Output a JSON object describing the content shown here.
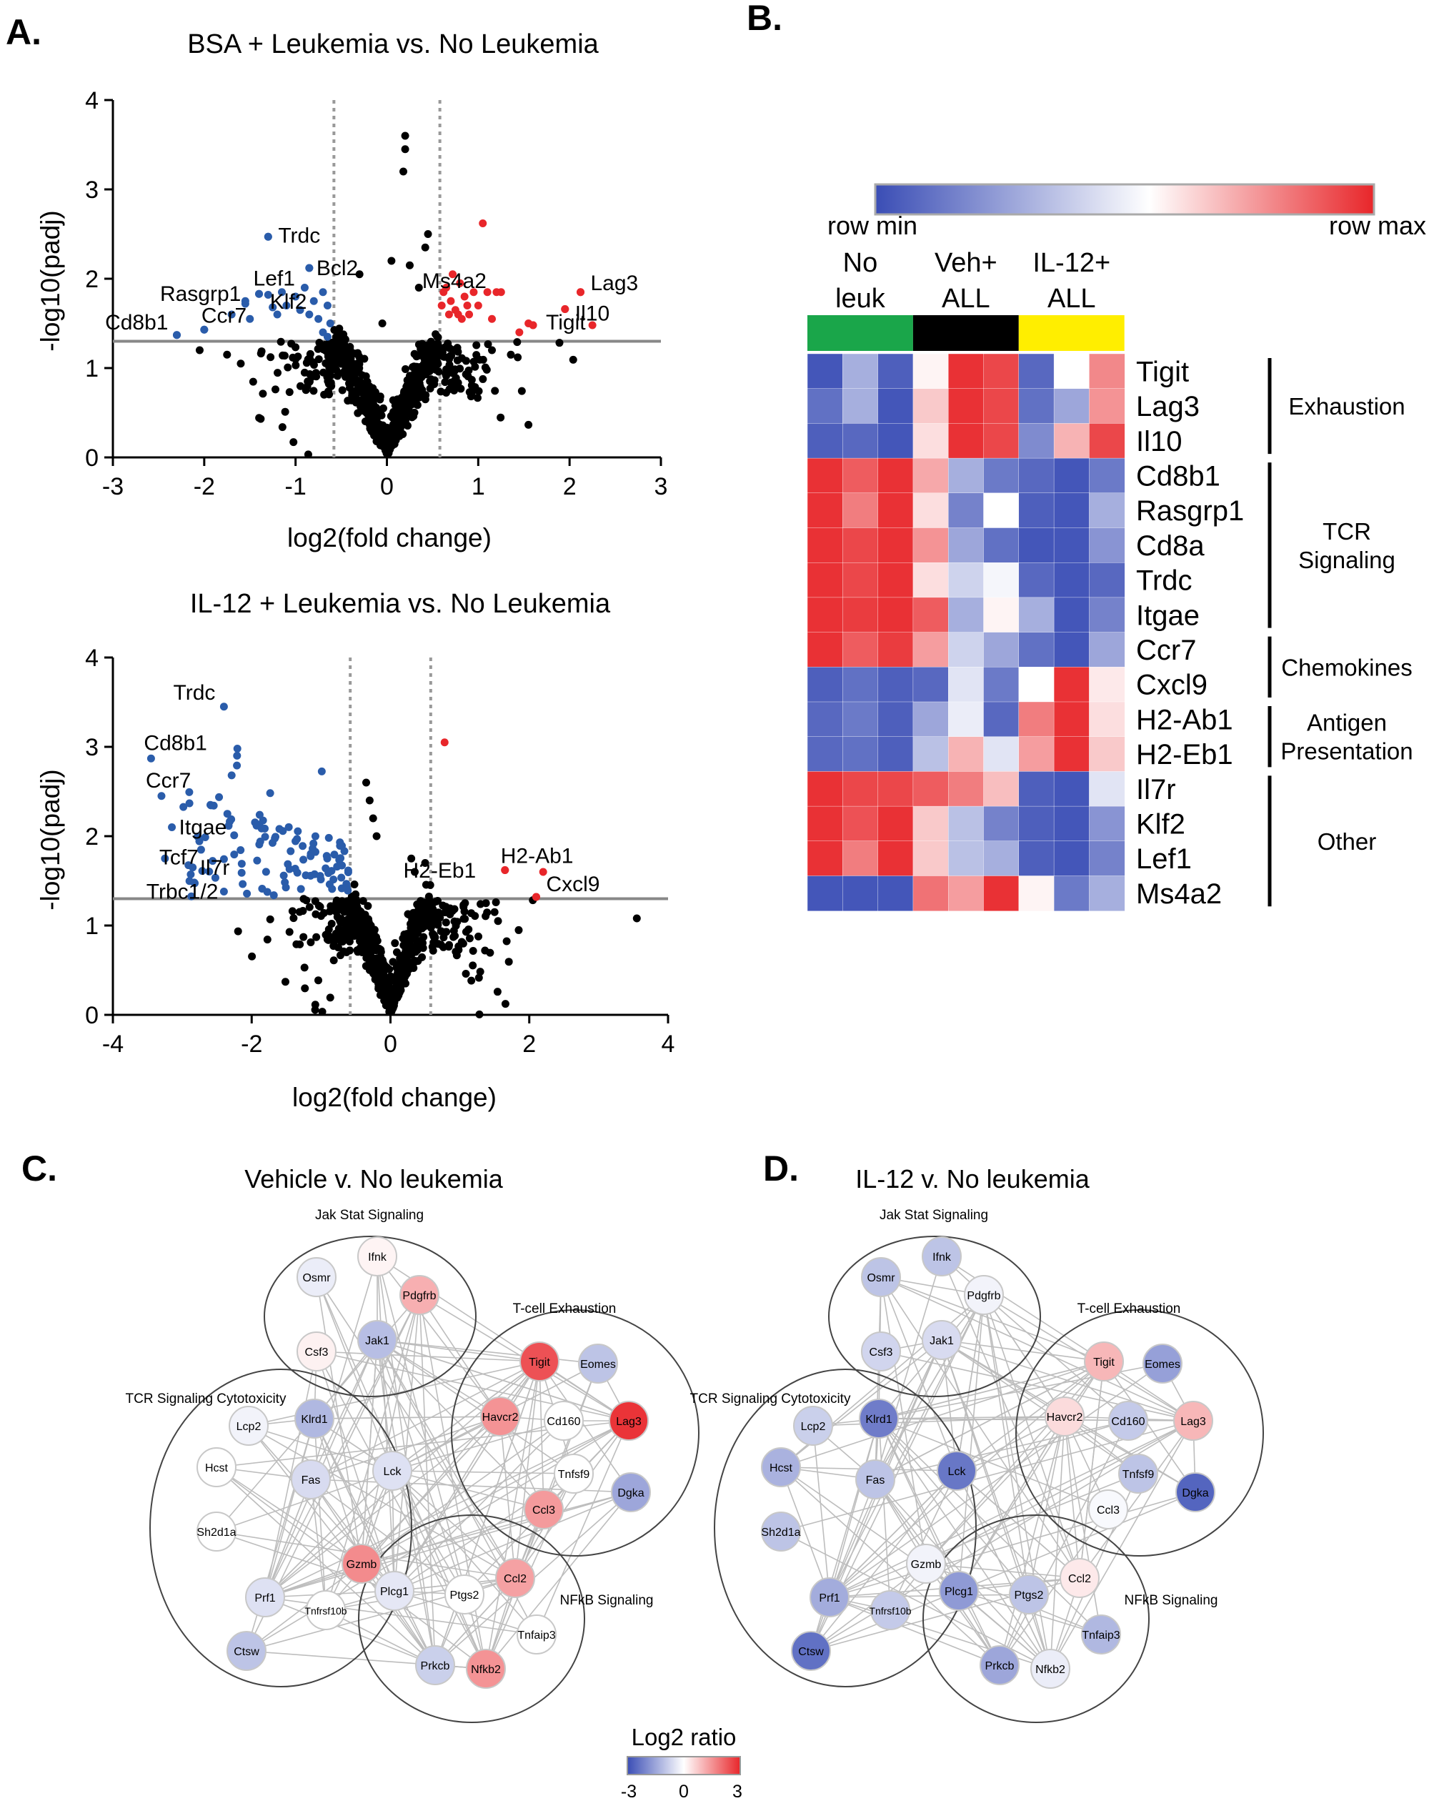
{
  "panels": {
    "a": "A.",
    "b": "B.",
    "c": "C.",
    "d": "D."
  },
  "chart_data": [
    {
      "type": "scatter",
      "panel": "A",
      "title": "BSA + Leukemia vs. No Leukemia",
      "xlabel": "log2(fold change)",
      "ylabel": "-log10(padj)",
      "xlim": [
        -3,
        3
      ],
      "ylim": [
        0,
        4
      ],
      "xticks": [
        -3,
        -2,
        -1,
        0,
        1,
        2,
        3
      ],
      "yticks": [
        0,
        1,
        2,
        3,
        4
      ],
      "threshold_y": 1.3,
      "threshold_x": [
        -0.58,
        0.58
      ],
      "labeled_points": [
        {
          "label": "Trdc",
          "x": -1.3,
          "y": 2.47,
          "color": "#2a5caa"
        },
        {
          "label": "Bcl2",
          "x": -0.85,
          "y": 2.12,
          "color": "#2a5caa"
        },
        {
          "label": "Lef1",
          "x": -1.4,
          "y": 1.83,
          "color": "#2a5caa"
        },
        {
          "label": "Rasgrp1",
          "x": -1.55,
          "y": 1.72,
          "color": "#2a5caa"
        },
        {
          "label": "Klf2",
          "x": -1.25,
          "y": 1.68,
          "color": "#2a5caa"
        },
        {
          "label": "Ccr7",
          "x": -2.0,
          "y": 1.43,
          "color": "#2a5caa"
        },
        {
          "label": "Cd8b1",
          "x": -2.3,
          "y": 1.37,
          "color": "#2a5caa"
        },
        {
          "label": "Ms4a2",
          "x": 1.2,
          "y": 1.85,
          "color": "#e8262a"
        },
        {
          "label": "Lag3",
          "x": 2.12,
          "y": 1.85,
          "color": "#e8262a"
        },
        {
          "label": "Il10",
          "x": 1.95,
          "y": 1.66,
          "color": "#e8262a"
        },
        {
          "label": "Tigit",
          "x": 1.6,
          "y": 1.48,
          "color": "#e8262a"
        }
      ],
      "sig_down_points": [
        [
          -1.7,
          1.6
        ],
        [
          -1.55,
          1.75
        ],
        [
          -1.3,
          1.82
        ],
        [
          -1.15,
          1.85
        ],
        [
          -1.1,
          1.7
        ],
        [
          -1.0,
          1.8
        ],
        [
          -0.95,
          1.65
        ],
        [
          -0.9,
          1.9
        ],
        [
          -0.85,
          1.6
        ],
        [
          -0.8,
          1.75
        ],
        [
          -0.75,
          1.55
        ],
        [
          -0.7,
          1.85
        ],
        [
          -0.7,
          1.4
        ],
        [
          -0.65,
          1.7
        ],
        [
          -0.65,
          1.35
        ],
        [
          -1.5,
          1.55
        ],
        [
          -1.2,
          1.6
        ],
        [
          -2.3,
          1.37
        ],
        [
          -2.0,
          1.43
        ],
        [
          -1.4,
          1.83
        ],
        [
          -1.25,
          1.68
        ],
        [
          -0.85,
          2.12
        ],
        [
          -1.3,
          2.47
        ],
        [
          -0.62,
          1.5
        ]
      ],
      "sig_up_points": [
        [
          0.6,
          1.7
        ],
        [
          0.62,
          1.85
        ],
        [
          0.65,
          1.9
        ],
        [
          0.68,
          1.6
        ],
        [
          0.7,
          1.75
        ],
        [
          0.72,
          2.05
        ],
        [
          0.75,
          1.65
        ],
        [
          0.8,
          1.95
        ],
        [
          0.82,
          1.55
        ],
        [
          0.85,
          1.8
        ],
        [
          0.88,
          1.7
        ],
        [
          0.9,
          1.6
        ],
        [
          0.95,
          1.85
        ],
        [
          1.0,
          1.7
        ],
        [
          1.05,
          2.62
        ],
        [
          1.1,
          1.85
        ],
        [
          1.25,
          1.85
        ],
        [
          1.45,
          1.4
        ],
        [
          1.55,
          1.5
        ],
        [
          1.6,
          1.48
        ],
        [
          1.95,
          1.66
        ],
        [
          2.12,
          1.85
        ],
        [
          2.25,
          1.48
        ],
        [
          0.78,
          1.6
        ],
        [
          1.15,
          1.55
        ]
      ],
      "ns_outliers": [
        [
          0.2,
          3.6
        ],
        [
          0.18,
          3.2
        ],
        [
          0.2,
          3.45
        ],
        [
          -0.3,
          2.05
        ],
        [
          0.05,
          2.2
        ],
        [
          0.45,
          2.5
        ],
        [
          0.42,
          2.35
        ],
        [
          -0.05,
          1.5
        ],
        [
          0.25,
          2.15
        ],
        [
          -1.6,
          1.05
        ],
        [
          -1.75,
          1.15
        ],
        [
          -2.05,
          1.2
        ],
        [
          -1.0,
          1.1
        ],
        [
          -0.55,
          1.25
        ],
        [
          0.35,
          1.9
        ],
        [
          1.15,
          1.2
        ]
      ],
      "ns_cloud": {
        "n": 700,
        "spread_x": 0.45,
        "seed": 11
      }
    },
    {
      "type": "scatter",
      "panel": "A",
      "title": "IL-12 + Leukemia vs. No Leukemia",
      "xlabel": "log2(fold change)",
      "ylabel": "-log10(padj)",
      "xlim": [
        -4,
        4
      ],
      "ylim": [
        0,
        4
      ],
      "xticks": [
        -4,
        -2,
        0,
        2,
        4
      ],
      "yticks": [
        0,
        1,
        2,
        3,
        4
      ],
      "threshold_y": 1.3,
      "threshold_x": [
        -0.58,
        0.58
      ],
      "labeled_points": [
        {
          "label": "Trdc",
          "x": -2.4,
          "y": 3.45,
          "color": "#2a5caa"
        },
        {
          "label": "Cd8b1",
          "x": -3.45,
          "y": 2.87,
          "color": "#2a5caa"
        },
        {
          "label": "Ccr7",
          "x": -3.3,
          "y": 2.45,
          "color": "#2a5caa"
        },
        {
          "label": "Itgae",
          "x": -3.15,
          "y": 2.1,
          "color": "#2a5caa"
        },
        {
          "label": "Tcf7",
          "x": -3.25,
          "y": 1.75,
          "color": "#2a5caa"
        },
        {
          "label": "Il7r",
          "x": -2.85,
          "y": 1.65,
          "color": "#2a5caa"
        },
        {
          "label": "Trbc1/2",
          "x": -2.4,
          "y": 1.38,
          "color": "#2a5caa"
        },
        {
          "label": "H2-Eb1",
          "x": 0.35,
          "y": 1.6,
          "color": "#000000"
        },
        {
          "label": "H2-Ab1",
          "x": 1.65,
          "y": 1.62,
          "color": "#e8262a"
        },
        {
          "label": "Cxcl9",
          "x": 2.1,
          "y": 1.32,
          "color": "#e8262a"
        }
      ],
      "sig_up_points": [
        [
          0.78,
          3.05
        ],
        [
          1.65,
          1.62
        ],
        [
          2.2,
          1.6
        ],
        [
          2.1,
          1.32
        ]
      ],
      "ns_outliers": [
        [
          3.55,
          1.08
        ],
        [
          1.5,
          1.15
        ],
        [
          1.55,
          1.05
        ],
        [
          -0.35,
          2.6
        ],
        [
          -0.3,
          2.4
        ],
        [
          -0.25,
          2.2
        ],
        [
          -0.2,
          2.0
        ],
        [
          0.3,
          1.75
        ],
        [
          0.5,
          1.7
        ]
      ],
      "sig_down_counts": 110,
      "ns_cloud": {
        "n": 750,
        "spread_x": 0.55,
        "seed": 23
      }
    },
    {
      "type": "heatmap",
      "panel": "B",
      "colorbar_min_label": "row min",
      "colorbar_max_label": "row max",
      "groups": [
        {
          "label_line1": "No",
          "label_line2": "leuk",
          "color": "#1aa64a"
        },
        {
          "label_line1": "Veh+",
          "label_line2": "ALL",
          "color": "#000000"
        },
        {
          "label_line1": "IL-12+",
          "label_line2": "ALL",
          "color": "#ffee00"
        }
      ],
      "rows": [
        "Tigit",
        "Lag3",
        "Il10",
        "Cd8b1",
        "Rasgrp1",
        "Cd8a",
        "Trdc",
        "Itgae",
        "Ccr7",
        "Cxcl9",
        "H2-Ab1",
        "H2-Eb1",
        "Il7r",
        "Klf2",
        "Lef1",
        "Ms4a2"
      ],
      "values": [
        [
          -0.95,
          -0.45,
          -0.9,
          0.05,
          0.95,
          0.85,
          -0.85,
          0.0,
          0.55
        ],
        [
          -0.8,
          -0.45,
          -0.95,
          0.25,
          0.95,
          0.85,
          -0.8,
          -0.5,
          0.5
        ],
        [
          -0.9,
          -0.85,
          -0.95,
          0.15,
          0.95,
          0.85,
          -0.65,
          0.35,
          0.85
        ],
        [
          0.95,
          0.75,
          0.95,
          0.4,
          -0.45,
          -0.75,
          -0.85,
          -0.95,
          -0.75
        ],
        [
          0.95,
          0.6,
          0.95,
          0.15,
          -0.7,
          0.0,
          -0.9,
          -0.95,
          -0.45
        ],
        [
          0.95,
          0.85,
          0.95,
          0.5,
          -0.5,
          -0.8,
          -0.95,
          -0.95,
          -0.6
        ],
        [
          0.95,
          0.85,
          0.95,
          0.15,
          -0.25,
          -0.05,
          -0.85,
          -0.95,
          -0.85
        ],
        [
          0.95,
          0.9,
          0.95,
          0.75,
          -0.45,
          0.05,
          -0.45,
          -0.95,
          -0.7
        ],
        [
          0.95,
          0.75,
          0.9,
          0.45,
          -0.25,
          -0.5,
          -0.8,
          -0.95,
          -0.5
        ],
        [
          -0.9,
          -0.8,
          -0.9,
          -0.85,
          -0.15,
          -0.75,
          0.0,
          0.95,
          0.1
        ],
        [
          -0.85,
          -0.75,
          -0.9,
          -0.5,
          -0.1,
          -0.85,
          0.6,
          0.95,
          0.15
        ],
        [
          -0.85,
          -0.8,
          -0.9,
          -0.35,
          0.35,
          -0.15,
          0.45,
          0.95,
          0.25
        ],
        [
          0.95,
          0.85,
          0.85,
          0.75,
          0.6,
          0.3,
          -0.9,
          -0.95,
          -0.15
        ],
        [
          0.95,
          0.8,
          0.95,
          0.25,
          -0.35,
          -0.7,
          -0.9,
          -0.95,
          -0.6
        ],
        [
          0.95,
          0.6,
          0.95,
          0.25,
          -0.35,
          -0.45,
          -0.9,
          -0.95,
          -0.7
        ],
        [
          -0.95,
          -0.95,
          -0.95,
          0.65,
          0.45,
          0.95,
          0.05,
          -0.75,
          -0.45
        ]
      ],
      "brackets": [
        {
          "label_lines": [
            "Exhaustion"
          ],
          "start_row": 0,
          "end_row": 2
        },
        {
          "label_lines": [
            "TCR",
            "Signaling"
          ],
          "start_row": 3,
          "end_row": 7
        },
        {
          "label_lines": [
            "Chemokines"
          ],
          "start_row": 8,
          "end_row": 9
        },
        {
          "label_lines": [
            "Antigen",
            "Presentation"
          ],
          "start_row": 10,
          "end_row": 11
        },
        {
          "label_lines": [
            "Other"
          ],
          "start_row": 12,
          "end_row": 15
        }
      ]
    },
    {
      "type": "network",
      "panel": "C",
      "title": "Vehicle v. No leukemia",
      "clusters": [
        {
          "label": "Jak Stat Signaling"
        },
        {
          "label": "T-cell Exhaustion"
        },
        {
          "label": "TCR Signaling Cytotoxicity"
        },
        {
          "label": "NFkB Signaling"
        }
      ],
      "nodes": [
        {
          "gene": "Osmr",
          "log2": -0.3
        },
        {
          "gene": "Ifnk",
          "log2": 0.15
        },
        {
          "gene": "Pdgfrb",
          "log2": 1.1
        },
        {
          "gene": "Csf3",
          "log2": 0.2
        },
        {
          "gene": "Jak1",
          "log2": -1.1
        },
        {
          "gene": "Tigit",
          "log2": 2.4
        },
        {
          "gene": "Eomes",
          "log2": -1.0
        },
        {
          "gene": "Cd160",
          "log2": 0.0
        },
        {
          "gene": "Lag3",
          "log2": 2.8
        },
        {
          "gene": "Havcr2",
          "log2": 1.5
        },
        {
          "gene": "Tnfsf9",
          "log2": 0.0
        },
        {
          "gene": "Ccl3",
          "log2": 1.4
        },
        {
          "gene": "Dgka",
          "log2": -1.5
        },
        {
          "gene": "Lcp2",
          "log2": -0.2
        },
        {
          "gene": "Klrd1",
          "log2": -1.2
        },
        {
          "gene": "Hcst",
          "log2": 0.0
        },
        {
          "gene": "Fas",
          "log2": -0.6
        },
        {
          "gene": "Lck",
          "log2": -0.5
        },
        {
          "gene": "Sh2d1a",
          "log2": 0.0
        },
        {
          "gene": "Gzmb",
          "log2": 1.6
        },
        {
          "gene": "Prf1",
          "log2": -0.5
        },
        {
          "gene": "Tnfrsf10b",
          "log2": 0.0
        },
        {
          "gene": "Ctsw",
          "log2": -1.0
        },
        {
          "gene": "Plcg1",
          "log2": -0.4
        },
        {
          "gene": "Ptgs2",
          "log2": 0.0
        },
        {
          "gene": "Ccl2",
          "log2": 1.3
        },
        {
          "gene": "Tnfaip3",
          "log2": 0.0
        },
        {
          "gene": "Prkcb",
          "log2": -0.8
        },
        {
          "gene": "Nfkb2",
          "log2": 1.5
        }
      ]
    },
    {
      "type": "network",
      "panel": "D",
      "title": "IL-12 v. No leukemia",
      "clusters": [
        {
          "label": "Jak Stat Signaling"
        },
        {
          "label": "T-cell Exhaustion"
        },
        {
          "label": "TCR Signaling Cytotoxicity"
        },
        {
          "label": "NFkB Signaling"
        }
      ],
      "nodes": [
        {
          "gene": "Osmr",
          "log2": -1.0
        },
        {
          "gene": "Ifnk",
          "log2": -1.0
        },
        {
          "gene": "Pdgfrb",
          "log2": -0.2
        },
        {
          "gene": "Csf3",
          "log2": -0.7
        },
        {
          "gene": "Jak1",
          "log2": -0.6
        },
        {
          "gene": "Tigit",
          "log2": 1.0
        },
        {
          "gene": "Eomes",
          "log2": -1.6
        },
        {
          "gene": "Cd160",
          "log2": -0.9
        },
        {
          "gene": "Lag3",
          "log2": 1.0
        },
        {
          "gene": "Havcr2",
          "log2": 0.5
        },
        {
          "gene": "Tnfsf9",
          "log2": -1.0
        },
        {
          "gene": "Ccl3",
          "log2": -0.1
        },
        {
          "gene": "Dgka",
          "log2": -2.6
        },
        {
          "gene": "Lcp2",
          "log2": -0.8
        },
        {
          "gene": "Klrd1",
          "log2": -2.2
        },
        {
          "gene": "Hcst",
          "log2": -1.3
        },
        {
          "gene": "Fas",
          "log2": -1.0
        },
        {
          "gene": "Lck",
          "log2": -2.3
        },
        {
          "gene": "Sh2d1a",
          "log2": -1.0
        },
        {
          "gene": "Gzmb",
          "log2": -0.2
        },
        {
          "gene": "Prf1",
          "log2": -1.4
        },
        {
          "gene": "Tnfrsf10b",
          "log2": -0.9
        },
        {
          "gene": "Ctsw",
          "log2": -2.4
        },
        {
          "gene": "Plcg1",
          "log2": -1.7
        },
        {
          "gene": "Ptgs2",
          "log2": -1.0
        },
        {
          "gene": "Ccl2",
          "log2": 0.3
        },
        {
          "gene": "Tnfaip3",
          "log2": -1.2
        },
        {
          "gene": "Prkcb",
          "log2": -1.5
        },
        {
          "gene": "Nfkb2",
          "log2": -0.3
        }
      ]
    }
  ],
  "legend": {
    "title": "Log2 ratio",
    "min_label": "-3",
    "mid_label": "0",
    "max_label": "3"
  }
}
